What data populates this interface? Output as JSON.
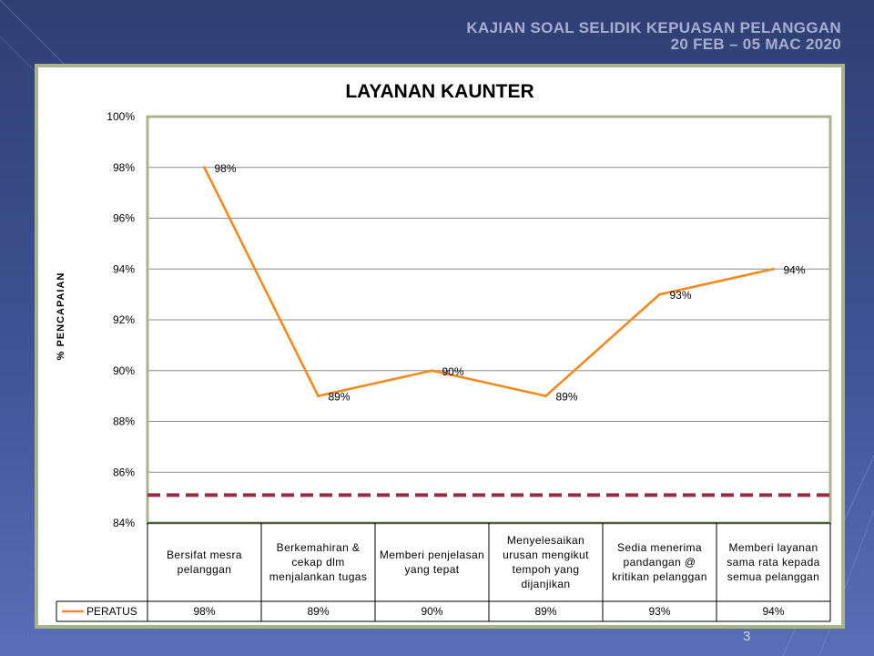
{
  "header": {
    "line1": "KAJIAN SOAL SELIDIK KEPUASAN PELANGGAN",
    "line2": "20 FEB – 05 MAC 2020"
  },
  "page_number": "3",
  "colors": {
    "series": "#f4891f",
    "target_line": "#9b2a46",
    "plot_border": "#a9b48c",
    "grid": "#8c8c8c"
  },
  "chart_data": {
    "type": "line",
    "title": "LAYANAN KAUNTER",
    "ylabel": "% PENCAPAIAN",
    "xlabel": "",
    "ylim": [
      84,
      100
    ],
    "y_ticks": [
      84,
      86,
      88,
      90,
      92,
      94,
      96,
      98,
      100
    ],
    "y_tick_labels": [
      "84%",
      "86%",
      "88%",
      "90%",
      "92%",
      "94%",
      "96%",
      "98%",
      "100%"
    ],
    "grid": true,
    "legend": "in-table-left",
    "categories": [
      "Bersifat mesra pelanggan",
      "Berkemahiran & cekap dlm menjalankan tugas",
      "Memberi penjelasan yang tepat",
      "Menyelesaikan urusan mengikut tempoh yang dijanjikan",
      "Sedia menerima pandangan @ kritikan pelanggan",
      "Memberi layanan sama rata kepada semua pelanggan"
    ],
    "series": [
      {
        "name": "PERATUS",
        "values": [
          98,
          89,
          90,
          89,
          93,
          94
        ],
        "labels": [
          "98%",
          "89%",
          "90%",
          "89%",
          "93%",
          "94%"
        ]
      }
    ],
    "reference_line": {
      "value": 85.1,
      "style": "dashed"
    }
  }
}
